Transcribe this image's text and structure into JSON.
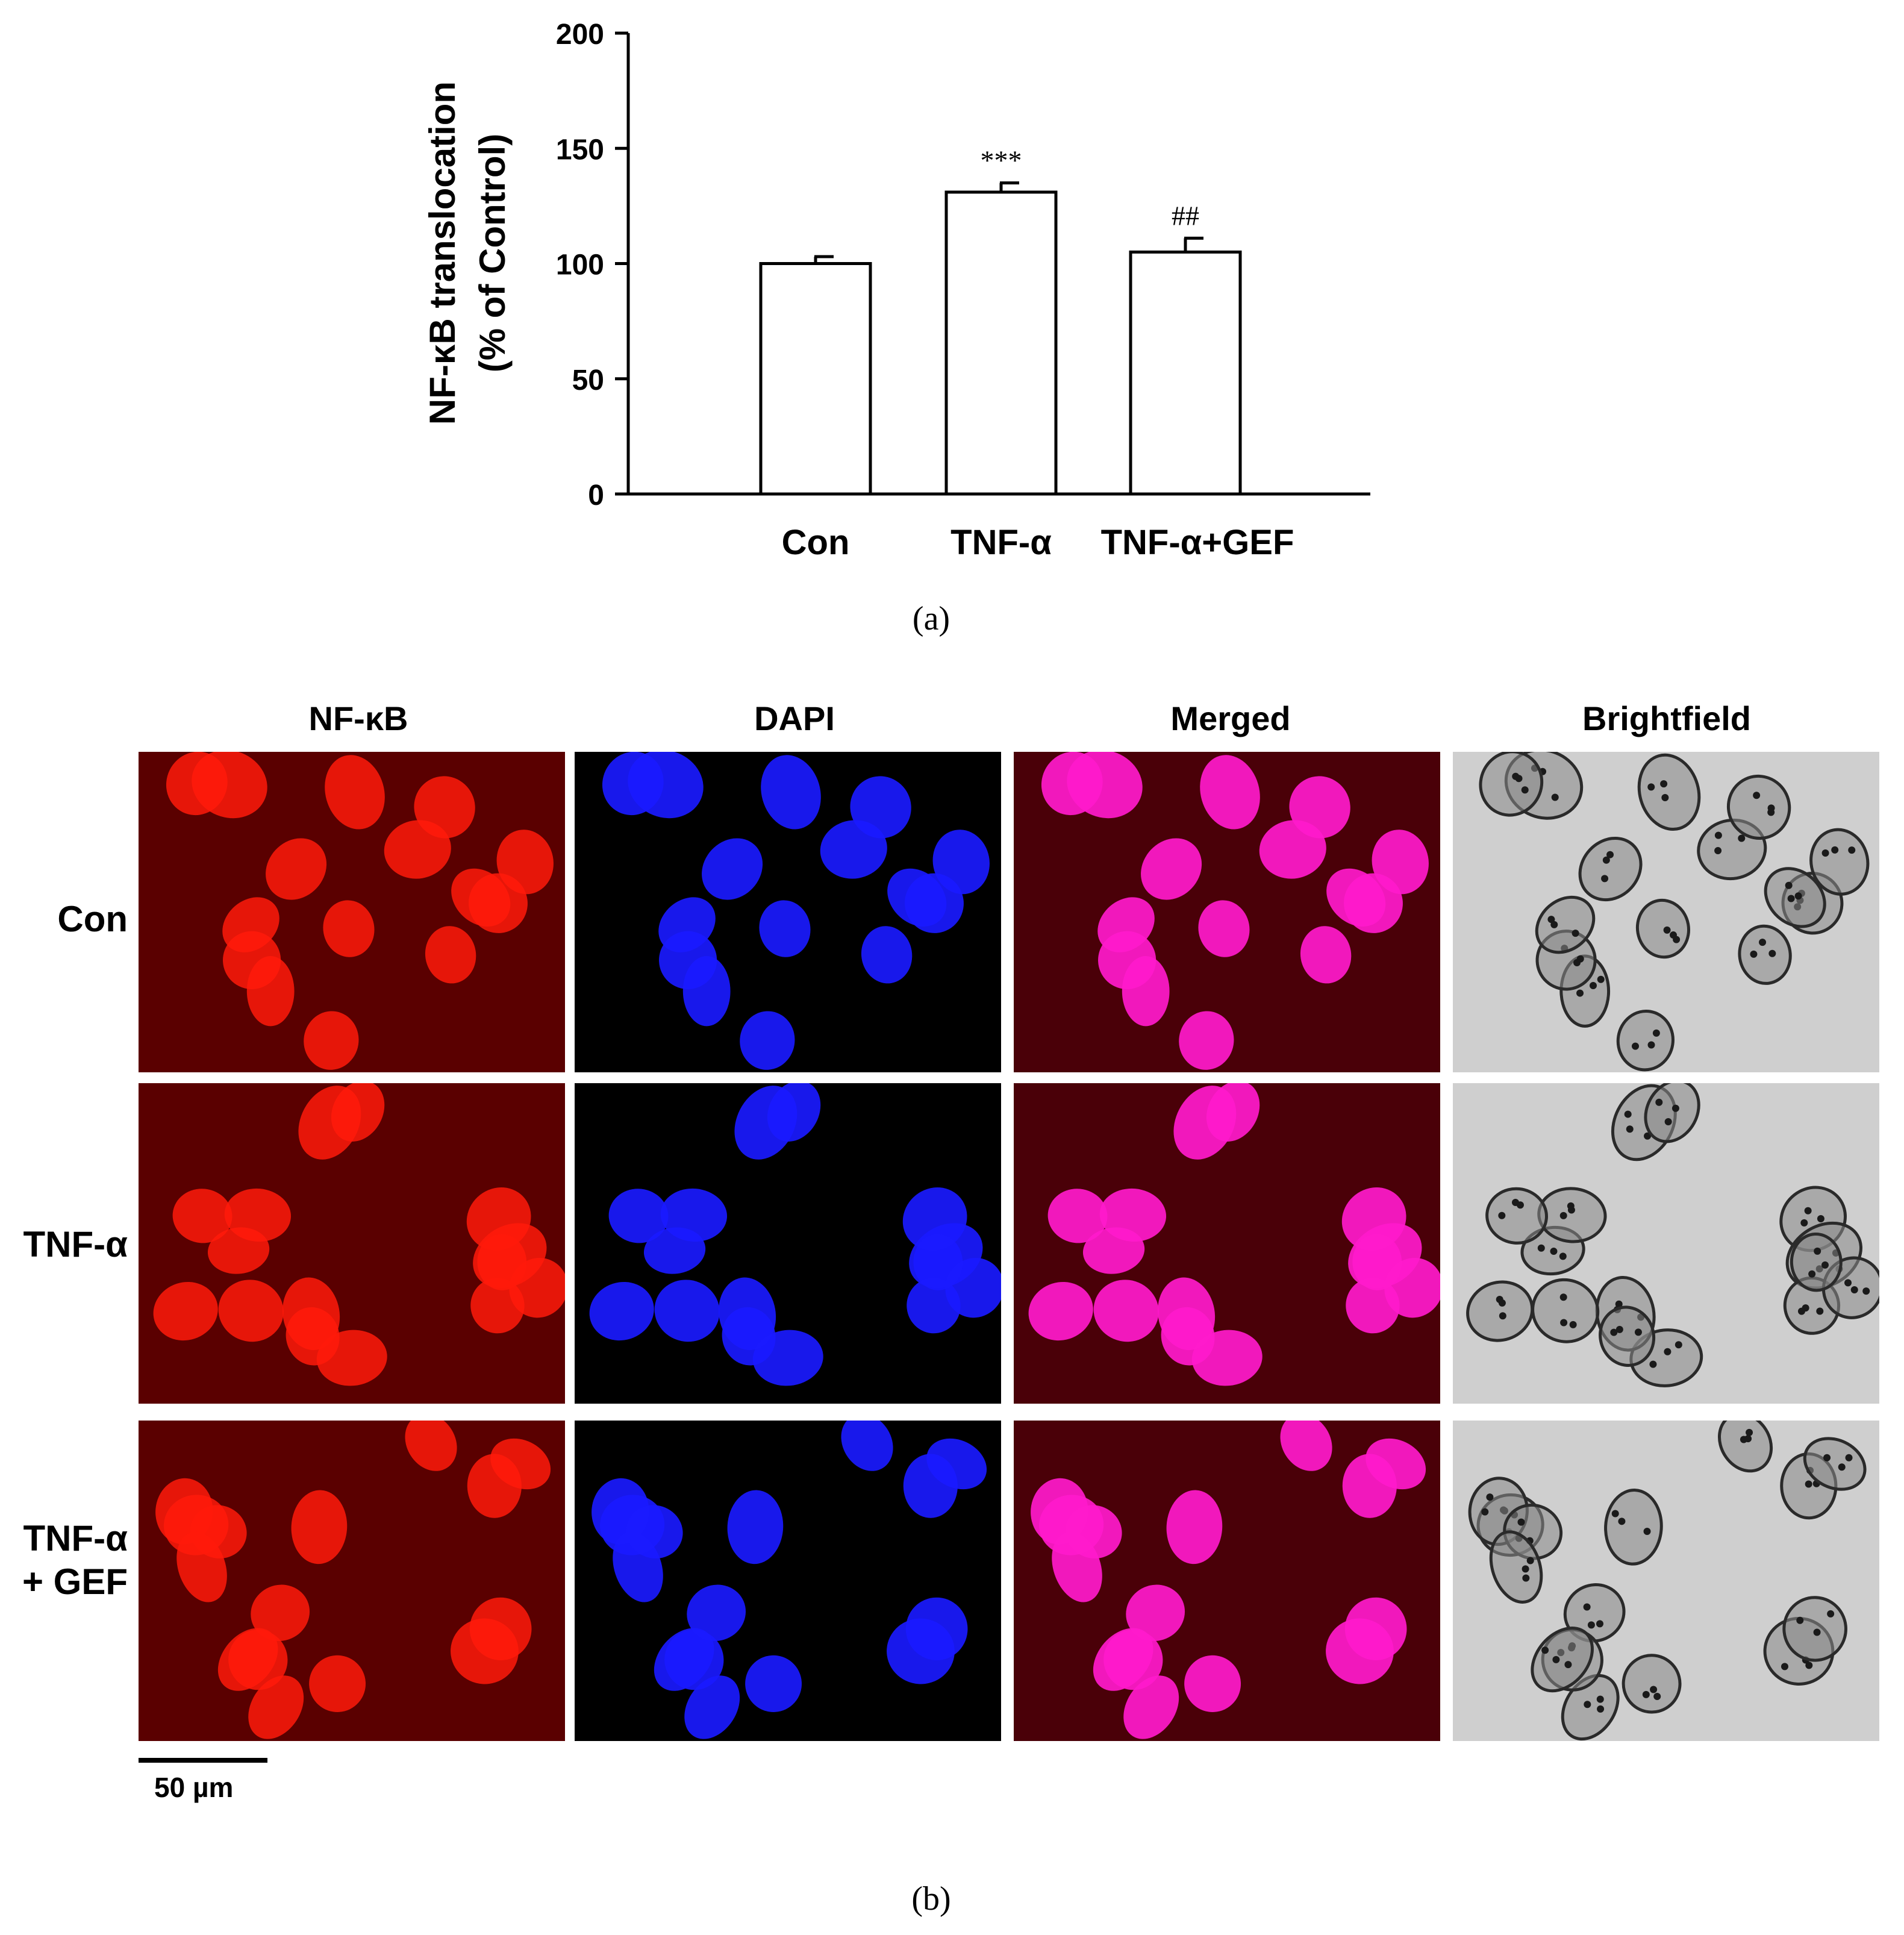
{
  "chart_data": {
    "type": "bar",
    "categories": [
      "Con",
      "TNF-α",
      "TNF-α+GEF"
    ],
    "values": [
      100,
      131,
      105
    ],
    "errors": [
      3,
      4,
      6
    ],
    "annotations": [
      "",
      "***",
      "##"
    ],
    "ylabel_line1": "NF-κB translocation",
    "ylabel_line2": "(% of Control)",
    "ylim": [
      0,
      200
    ],
    "yticks": [
      0,
      50,
      100,
      150,
      200
    ],
    "bar_fill": "#ffffff",
    "bar_stroke": "#000000",
    "grid": false
  },
  "panel_labels": {
    "a": "(a)",
    "b": "(b)"
  },
  "micrograph_panel": {
    "columns": [
      "NF-κB",
      "DAPI",
      "Merged",
      "Brightfield"
    ],
    "rows": [
      {
        "lines": [
          "Con"
        ]
      },
      {
        "lines": [
          "TNF-α"
        ]
      },
      {
        "lines": [
          "TNF-α",
          "+ GEF"
        ]
      }
    ],
    "scale_bar_label": "50 µm",
    "channel_colors": {
      "nfkb": "#ff1a0a",
      "dapi": "#1a1aff",
      "merged": "#ff1acc",
      "brightfield": "#d6d6d6"
    }
  }
}
